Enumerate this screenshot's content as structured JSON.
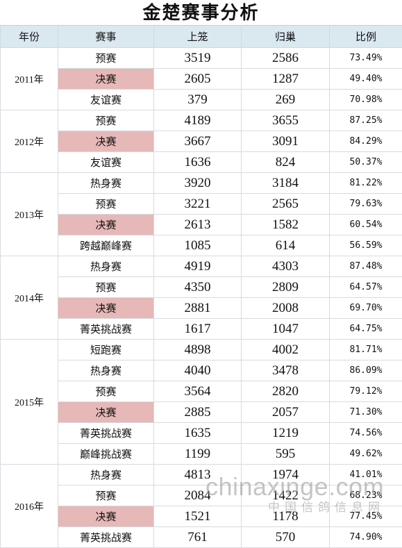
{
  "title": "金楚赛事分析",
  "headers": [
    "年份",
    "赛事",
    "上笼",
    "归巢",
    "比例"
  ],
  "highlight_color": "#e6b8b7",
  "header_color": "#dae8f0",
  "groups": [
    {
      "year": "2011年",
      "rows": [
        {
          "event": "预赛",
          "in": "3519",
          "back": "2586",
          "ratio": "73.49%",
          "hl": false
        },
        {
          "event": "决赛",
          "in": "2605",
          "back": "1287",
          "ratio": "49.40%",
          "hl": true
        },
        {
          "event": "友谊赛",
          "in": "379",
          "back": "269",
          "ratio": "70.98%",
          "hl": false
        }
      ]
    },
    {
      "year": "2012年",
      "rows": [
        {
          "event": "预赛",
          "in": "4189",
          "back": "3655",
          "ratio": "87.25%",
          "hl": false
        },
        {
          "event": "决赛",
          "in": "3667",
          "back": "3091",
          "ratio": "84.29%",
          "hl": true
        },
        {
          "event": "友谊赛",
          "in": "1636",
          "back": "824",
          "ratio": "50.37%",
          "hl": false
        }
      ]
    },
    {
      "year": "2013年",
      "rows": [
        {
          "event": "热身赛",
          "in": "3920",
          "back": "3184",
          "ratio": "81.22%",
          "hl": false
        },
        {
          "event": "预赛",
          "in": "3221",
          "back": "2565",
          "ratio": "79.63%",
          "hl": false
        },
        {
          "event": "决赛",
          "in": "2613",
          "back": "1582",
          "ratio": "60.54%",
          "hl": true
        },
        {
          "event": "跨越巅峰赛",
          "in": "1085",
          "back": "614",
          "ratio": "56.59%",
          "hl": false
        }
      ]
    },
    {
      "year": "2014年",
      "rows": [
        {
          "event": "热身赛",
          "in": "4919",
          "back": "4303",
          "ratio": "87.48%",
          "hl": false
        },
        {
          "event": "预赛",
          "in": "4350",
          "back": "2809",
          "ratio": "64.57%",
          "hl": false
        },
        {
          "event": "决赛",
          "in": "2881",
          "back": "2008",
          "ratio": "69.70%",
          "hl": true
        },
        {
          "event": "菁英挑战赛",
          "in": "1617",
          "back": "1047",
          "ratio": "64.75%",
          "hl": false
        }
      ]
    },
    {
      "year": "2015年",
      "rows": [
        {
          "event": "短跑赛",
          "in": "4898",
          "back": "4002",
          "ratio": "81.71%",
          "hl": false
        },
        {
          "event": "热身赛",
          "in": "4040",
          "back": "3478",
          "ratio": "86.09%",
          "hl": false
        },
        {
          "event": "预赛",
          "in": "3564",
          "back": "2820",
          "ratio": "79.12%",
          "hl": false
        },
        {
          "event": "决赛",
          "in": "2885",
          "back": "2057",
          "ratio": "71.30%",
          "hl": true
        },
        {
          "event": "菁英挑战赛",
          "in": "1635",
          "back": "1219",
          "ratio": "74.56%",
          "hl": false
        },
        {
          "event": "巅峰挑战赛",
          "in": "1199",
          "back": "595",
          "ratio": "49.62%",
          "hl": false
        }
      ]
    },
    {
      "year": "2016年",
      "rows": [
        {
          "event": "热身赛",
          "in": "4813",
          "back": "1974",
          "ratio": "41.01%",
          "hl": false
        },
        {
          "event": "预赛",
          "in": "2084",
          "back": "1422",
          "ratio": "68.23%",
          "hl": false
        },
        {
          "event": "决赛",
          "in": "1521",
          "back": "1178",
          "ratio": "77.45%",
          "hl": true
        },
        {
          "event": "菁英挑战赛",
          "in": "761",
          "back": "570",
          "ratio": "74.90%",
          "hl": false
        }
      ]
    }
  ],
  "watermark": {
    "main": "chinaxinge.com",
    "sub": "中国信鸽信息网"
  }
}
